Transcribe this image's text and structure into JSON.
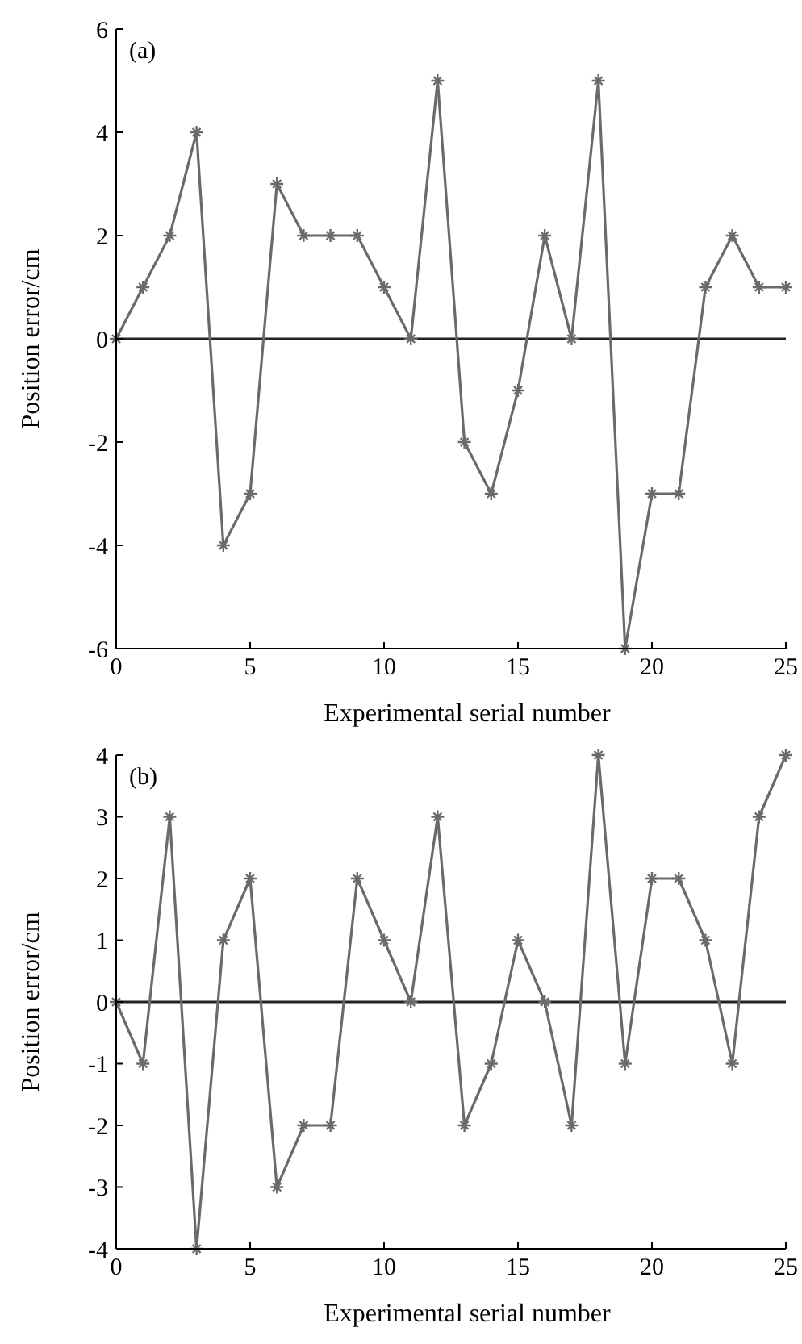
{
  "chart_data": [
    {
      "type": "line",
      "xlabel": "Experimental serial number",
      "ylabel": "Position error/cm",
      "annotations": [
        "(a)"
      ],
      "x": [
        0,
        1,
        2,
        3,
        4,
        5,
        6,
        7,
        8,
        9,
        10,
        11,
        12,
        13,
        14,
        15,
        16,
        17,
        18,
        19,
        20,
        21,
        22,
        23,
        24,
        25
      ],
      "series": [
        {
          "color": "#6a6a6a",
          "values": [
            0,
            1,
            2,
            4,
            -4,
            -3,
            3,
            2,
            2,
            2,
            1,
            0,
            5,
            -2,
            -3,
            -1,
            2,
            0,
            5,
            -6,
            -3,
            -3,
            1,
            2,
            1,
            1
          ]
        }
      ],
      "xlim": [
        0,
        25
      ],
      "xticks": [
        0,
        5,
        10,
        15,
        20,
        25
      ],
      "ylim": [
        -6,
        6
      ],
      "yticks": [
        -6,
        -4,
        -2,
        0,
        2,
        4,
        6
      ],
      "marker": "cross",
      "line_style": "solid",
      "ref_lines": [
        {
          "axis": "y",
          "value": 0,
          "color": "#222222"
        }
      ]
    },
    {
      "type": "line",
      "xlabel": "Experimental serial number",
      "ylabel": "Position error/cm",
      "annotations": [
        "(b)"
      ],
      "x": [
        0,
        1,
        2,
        3,
        4,
        5,
        6,
        7,
        8,
        9,
        10,
        11,
        12,
        13,
        14,
        15,
        16,
        17,
        18,
        19,
        20,
        21,
        22,
        23,
        24,
        25
      ],
      "series": [
        {
          "color": "#6a6a6a",
          "values": [
            0,
            -1,
            3,
            -4,
            1,
            2,
            -3,
            -2,
            -2,
            2,
            1,
            0,
            3,
            -2,
            -1,
            1,
            0,
            -2,
            4,
            -1,
            2,
            2,
            1,
            -1,
            3,
            4
          ]
        }
      ],
      "xlim": [
        0,
        25
      ],
      "xticks": [
        0,
        5,
        10,
        15,
        20,
        25
      ],
      "ylim": [
        -4,
        4
      ],
      "yticks": [
        -4,
        -3,
        -2,
        -1,
        0,
        1,
        2,
        3,
        4
      ],
      "marker": "cross",
      "line_style": "solid",
      "ref_lines": [
        {
          "axis": "y",
          "value": 0,
          "color": "#222222"
        }
      ]
    }
  ]
}
